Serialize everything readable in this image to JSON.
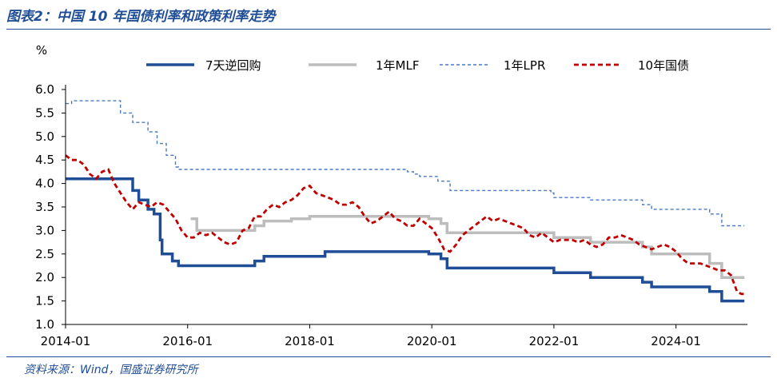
{
  "header": {
    "title": "图表2：中国 10 年国债利率和政策利率走势"
  },
  "footer": {
    "source": "资料来源：Wind，国盛证券研究所"
  },
  "chart_data": {
    "type": "line",
    "unit_label": "%",
    "ylim": [
      1.0,
      6.0
    ],
    "y_ticks": [
      "1.0",
      "1.5",
      "2.0",
      "2.5",
      "3.0",
      "3.5",
      "4.0",
      "4.5",
      "5.0",
      "5.5",
      "6.0"
    ],
    "xlim": [
      2014.0,
      2025.17
    ],
    "x_ticks": [
      {
        "x": 2014.0,
        "label": "2014-01"
      },
      {
        "x": 2016.0,
        "label": "2016-01"
      },
      {
        "x": 2018.0,
        "label": "2018-01"
      },
      {
        "x": 2020.0,
        "label": "2020-01"
      },
      {
        "x": 2022.0,
        "label": "2022-01"
      },
      {
        "x": 2024.0,
        "label": "2024-01"
      }
    ],
    "grid": false,
    "legend_position": "top",
    "series": [
      {
        "name": "7天逆回购",
        "style": "solid",
        "color": "#1f4e96",
        "step": true,
        "points": [
          [
            2014.0,
            4.1
          ],
          [
            2015.1,
            4.1
          ],
          [
            2015.1,
            3.85
          ],
          [
            2015.2,
            3.85
          ],
          [
            2015.2,
            3.65
          ],
          [
            2015.35,
            3.65
          ],
          [
            2015.35,
            3.45
          ],
          [
            2015.45,
            3.45
          ],
          [
            2015.45,
            3.35
          ],
          [
            2015.55,
            3.35
          ],
          [
            2015.55,
            2.8
          ],
          [
            2015.58,
            2.8
          ],
          [
            2015.58,
            2.5
          ],
          [
            2015.75,
            2.5
          ],
          [
            2015.75,
            2.35
          ],
          [
            2015.85,
            2.35
          ],
          [
            2015.85,
            2.25
          ],
          [
            2017.1,
            2.25
          ],
          [
            2017.1,
            2.35
          ],
          [
            2017.25,
            2.35
          ],
          [
            2017.25,
            2.45
          ],
          [
            2018.25,
            2.45
          ],
          [
            2018.25,
            2.55
          ],
          [
            2019.95,
            2.55
          ],
          [
            2019.95,
            2.5
          ],
          [
            2020.15,
            2.5
          ],
          [
            2020.15,
            2.4
          ],
          [
            2020.25,
            2.4
          ],
          [
            2020.25,
            2.2
          ],
          [
            2022.0,
            2.2
          ],
          [
            2022.0,
            2.1
          ],
          [
            2022.6,
            2.1
          ],
          [
            2022.6,
            2.0
          ],
          [
            2023.45,
            2.0
          ],
          [
            2023.45,
            1.9
          ],
          [
            2023.6,
            1.9
          ],
          [
            2023.6,
            1.8
          ],
          [
            2024.55,
            1.8
          ],
          [
            2024.55,
            1.7
          ],
          [
            2024.75,
            1.7
          ],
          [
            2024.75,
            1.5
          ],
          [
            2025.12,
            1.5
          ]
        ]
      },
      {
        "name": "1年MLF",
        "style": "solid",
        "color": "#bdbdbd",
        "step": true,
        "points": [
          [
            2016.05,
            3.25
          ],
          [
            2016.15,
            3.25
          ],
          [
            2016.15,
            3.0
          ],
          [
            2017.1,
            3.0
          ],
          [
            2017.1,
            3.1
          ],
          [
            2017.25,
            3.1
          ],
          [
            2017.25,
            3.2
          ],
          [
            2017.7,
            3.2
          ],
          [
            2017.7,
            3.25
          ],
          [
            2018.0,
            3.25
          ],
          [
            2018.0,
            3.3
          ],
          [
            2019.95,
            3.3
          ],
          [
            2019.95,
            3.25
          ],
          [
            2020.15,
            3.25
          ],
          [
            2020.15,
            3.15
          ],
          [
            2020.25,
            3.15
          ],
          [
            2020.25,
            2.95
          ],
          [
            2022.0,
            2.95
          ],
          [
            2022.0,
            2.85
          ],
          [
            2022.6,
            2.85
          ],
          [
            2022.6,
            2.75
          ],
          [
            2023.45,
            2.75
          ],
          [
            2023.45,
            2.65
          ],
          [
            2023.6,
            2.65
          ],
          [
            2023.6,
            2.5
          ],
          [
            2024.55,
            2.5
          ],
          [
            2024.55,
            2.3
          ],
          [
            2024.75,
            2.3
          ],
          [
            2024.75,
            2.0
          ],
          [
            2025.12,
            2.0
          ]
        ]
      },
      {
        "name": "1年LPR",
        "style": "dashed",
        "color": "#4a7ac2",
        "step": true,
        "points": [
          [
            2014.0,
            5.7
          ],
          [
            2014.1,
            5.7
          ],
          [
            2014.1,
            5.76
          ],
          [
            2014.9,
            5.76
          ],
          [
            2014.9,
            5.5
          ],
          [
            2015.1,
            5.5
          ],
          [
            2015.1,
            5.3
          ],
          [
            2015.35,
            5.3
          ],
          [
            2015.35,
            5.1
          ],
          [
            2015.5,
            5.1
          ],
          [
            2015.5,
            4.85
          ],
          [
            2015.65,
            4.85
          ],
          [
            2015.65,
            4.6
          ],
          [
            2015.8,
            4.6
          ],
          [
            2015.8,
            4.35
          ],
          [
            2015.85,
            4.35
          ],
          [
            2015.85,
            4.3
          ],
          [
            2019.6,
            4.3
          ],
          [
            2019.6,
            4.25
          ],
          [
            2019.7,
            4.25
          ],
          [
            2019.7,
            4.2
          ],
          [
            2019.8,
            4.2
          ],
          [
            2019.8,
            4.15
          ],
          [
            2020.1,
            4.15
          ],
          [
            2020.1,
            4.05
          ],
          [
            2020.3,
            4.05
          ],
          [
            2020.3,
            3.85
          ],
          [
            2021.95,
            3.85
          ],
          [
            2021.95,
            3.8
          ],
          [
            2022.0,
            3.8
          ],
          [
            2022.0,
            3.7
          ],
          [
            2022.6,
            3.7
          ],
          [
            2022.6,
            3.65
          ],
          [
            2023.45,
            3.65
          ],
          [
            2023.45,
            3.55
          ],
          [
            2023.6,
            3.55
          ],
          [
            2023.6,
            3.45
          ],
          [
            2024.55,
            3.45
          ],
          [
            2024.55,
            3.35
          ],
          [
            2024.75,
            3.35
          ],
          [
            2024.75,
            3.1
          ],
          [
            2025.12,
            3.1
          ]
        ]
      },
      {
        "name": "10年国债",
        "style": "dashed-thick",
        "color": "#c00000",
        "step": false,
        "points": [
          [
            2014.0,
            4.6
          ],
          [
            2014.1,
            4.5
          ],
          [
            2014.2,
            4.5
          ],
          [
            2014.3,
            4.4
          ],
          [
            2014.4,
            4.2
          ],
          [
            2014.5,
            4.1
          ],
          [
            2014.6,
            4.25
          ],
          [
            2014.7,
            4.3
          ],
          [
            2014.8,
            4.0
          ],
          [
            2014.9,
            3.8
          ],
          [
            2015.0,
            3.6
          ],
          [
            2015.1,
            3.45
          ],
          [
            2015.2,
            3.6
          ],
          [
            2015.3,
            3.55
          ],
          [
            2015.4,
            3.5
          ],
          [
            2015.5,
            3.6
          ],
          [
            2015.6,
            3.55
          ],
          [
            2015.7,
            3.4
          ],
          [
            2015.8,
            3.25
          ],
          [
            2015.9,
            3.0
          ],
          [
            2016.0,
            2.85
          ],
          [
            2016.1,
            2.85
          ],
          [
            2016.2,
            2.95
          ],
          [
            2016.3,
            2.9
          ],
          [
            2016.4,
            2.95
          ],
          [
            2016.5,
            2.85
          ],
          [
            2016.6,
            2.75
          ],
          [
            2016.7,
            2.7
          ],
          [
            2016.8,
            2.75
          ],
          [
            2016.9,
            3.0
          ],
          [
            2017.0,
            3.05
          ],
          [
            2017.1,
            3.3
          ],
          [
            2017.2,
            3.3
          ],
          [
            2017.3,
            3.45
          ],
          [
            2017.4,
            3.55
          ],
          [
            2017.5,
            3.5
          ],
          [
            2017.6,
            3.6
          ],
          [
            2017.7,
            3.65
          ],
          [
            2017.8,
            3.75
          ],
          [
            2017.9,
            3.9
          ],
          [
            2018.0,
            3.95
          ],
          [
            2018.1,
            3.8
          ],
          [
            2018.2,
            3.75
          ],
          [
            2018.3,
            3.7
          ],
          [
            2018.4,
            3.65
          ],
          [
            2018.5,
            3.55
          ],
          [
            2018.6,
            3.55
          ],
          [
            2018.7,
            3.6
          ],
          [
            2018.8,
            3.5
          ],
          [
            2018.9,
            3.3
          ],
          [
            2019.0,
            3.15
          ],
          [
            2019.1,
            3.2
          ],
          [
            2019.2,
            3.3
          ],
          [
            2019.3,
            3.4
          ],
          [
            2019.4,
            3.25
          ],
          [
            2019.5,
            3.2
          ],
          [
            2019.6,
            3.1
          ],
          [
            2019.7,
            3.1
          ],
          [
            2019.8,
            3.25
          ],
          [
            2019.9,
            3.15
          ],
          [
            2020.0,
            3.05
          ],
          [
            2020.1,
            2.85
          ],
          [
            2020.2,
            2.6
          ],
          [
            2020.3,
            2.55
          ],
          [
            2020.4,
            2.7
          ],
          [
            2020.5,
            2.9
          ],
          [
            2020.6,
            3.0
          ],
          [
            2020.7,
            3.1
          ],
          [
            2020.8,
            3.2
          ],
          [
            2020.9,
            3.3
          ],
          [
            2021.0,
            3.2
          ],
          [
            2021.1,
            3.25
          ],
          [
            2021.2,
            3.2
          ],
          [
            2021.3,
            3.15
          ],
          [
            2021.4,
            3.1
          ],
          [
            2021.5,
            3.05
          ],
          [
            2021.6,
            2.9
          ],
          [
            2021.7,
            2.85
          ],
          [
            2021.8,
            2.95
          ],
          [
            2021.9,
            2.85
          ],
          [
            2022.0,
            2.75
          ],
          [
            2022.1,
            2.8
          ],
          [
            2022.2,
            2.8
          ],
          [
            2022.3,
            2.8
          ],
          [
            2022.4,
            2.75
          ],
          [
            2022.5,
            2.8
          ],
          [
            2022.6,
            2.7
          ],
          [
            2022.7,
            2.65
          ],
          [
            2022.8,
            2.7
          ],
          [
            2022.9,
            2.85
          ],
          [
            2023.0,
            2.85
          ],
          [
            2023.1,
            2.9
          ],
          [
            2023.2,
            2.85
          ],
          [
            2023.3,
            2.8
          ],
          [
            2023.4,
            2.7
          ],
          [
            2023.5,
            2.65
          ],
          [
            2023.6,
            2.6
          ],
          [
            2023.7,
            2.65
          ],
          [
            2023.8,
            2.7
          ],
          [
            2023.9,
            2.65
          ],
          [
            2024.0,
            2.55
          ],
          [
            2024.1,
            2.4
          ],
          [
            2024.2,
            2.3
          ],
          [
            2024.3,
            2.3
          ],
          [
            2024.4,
            2.3
          ],
          [
            2024.5,
            2.25
          ],
          [
            2024.6,
            2.2
          ],
          [
            2024.7,
            2.15
          ],
          [
            2024.8,
            2.15
          ],
          [
            2024.9,
            2.05
          ],
          [
            2025.0,
            1.7
          ],
          [
            2025.07,
            1.65
          ],
          [
            2025.12,
            1.65
          ]
        ]
      }
    ]
  }
}
